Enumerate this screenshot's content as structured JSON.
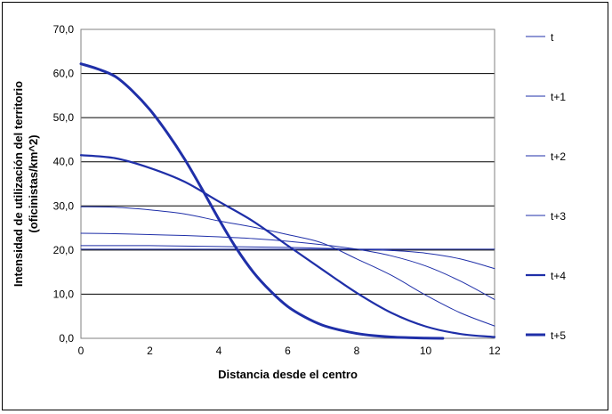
{
  "chart_data": {
    "type": "line",
    "title": "",
    "xlabel": "Distancia desde el centro",
    "ylabel_line1": "Intensidad de utilización del territorio",
    "ylabel_line2": "(oficinistas/km^2)",
    "xlim": [
      0,
      12
    ],
    "ylim": [
      0,
      70
    ],
    "x_ticks": [
      0,
      2,
      4,
      6,
      8,
      10,
      12
    ],
    "y_ticks": [
      0,
      10,
      20,
      30,
      40,
      50,
      60,
      70
    ],
    "y_tick_labels": [
      "0,0",
      "10,0",
      "20,0",
      "30,0",
      "40,0",
      "50,0",
      "60,0",
      "70,0"
    ],
    "x_tick_labels": [
      "0",
      "2",
      "4",
      "6",
      "8",
      "10",
      "12"
    ],
    "grid": "horizontal",
    "legend_position": "right",
    "line_color": "#1f2fa8",
    "series": [
      {
        "name": "t",
        "weight": "thin",
        "x": [
          0,
          1,
          2,
          3,
          4,
          5,
          6,
          7,
          8,
          9,
          10,
          11,
          12
        ],
        "y": [
          20.2,
          20.2,
          20.2,
          20.2,
          20.2,
          20.2,
          20.2,
          20.2,
          20.2,
          20.2,
          20.2,
          20.2,
          20.2
        ]
      },
      {
        "name": "t+1",
        "weight": "thin",
        "x": [
          0,
          1,
          2,
          3,
          4,
          5,
          6,
          7,
          8,
          9,
          10,
          11,
          12
        ],
        "y": [
          21.0,
          21.0,
          21.0,
          20.9,
          20.8,
          20.7,
          20.6,
          20.4,
          20.2,
          19.9,
          19.3,
          18.0,
          15.8
        ]
      },
      {
        "name": "t+2",
        "weight": "thin",
        "x": [
          0,
          1,
          2,
          3,
          4,
          5,
          6,
          7,
          8,
          9,
          10,
          11,
          12
        ],
        "y": [
          23.8,
          23.7,
          23.5,
          23.3,
          23.0,
          22.6,
          22.0,
          21.2,
          20.2,
          18.7,
          16.4,
          13.0,
          8.8
        ]
      },
      {
        "name": "t+3",
        "weight": "thin",
        "x": [
          0,
          1,
          2,
          3,
          4,
          5,
          6,
          7,
          8,
          9,
          10,
          11,
          12
        ],
        "y": [
          29.8,
          29.7,
          29.1,
          28.2,
          26.6,
          25.2,
          23.5,
          21.6,
          18.0,
          14.3,
          9.8,
          5.8,
          2.8
        ]
      },
      {
        "name": "t+4",
        "weight": "medium",
        "x": [
          0,
          1,
          2,
          3,
          4,
          5,
          6,
          7,
          8,
          9,
          10,
          11,
          12
        ],
        "y": [
          41.5,
          40.8,
          38.6,
          35.5,
          31.0,
          26.5,
          21.0,
          15.6,
          10.3,
          5.8,
          2.7,
          1.0,
          0.3
        ]
      },
      {
        "name": "t+5",
        "weight": "thick",
        "x": [
          0,
          0.5,
          1,
          1.5,
          2,
          2.5,
          3,
          3.5,
          4,
          4.5,
          5,
          5.5,
          6,
          6.5,
          7,
          7.5,
          8,
          8.5,
          9,
          9.5,
          10,
          10.5
        ],
        "y": [
          62.2,
          61.0,
          59.3,
          56.0,
          51.8,
          46.6,
          40.7,
          34.0,
          27.0,
          20.5,
          15.0,
          10.7,
          7.2,
          4.8,
          3.0,
          1.9,
          1.1,
          0.6,
          0.3,
          0.15,
          0.05,
          0.0
        ]
      }
    ]
  }
}
